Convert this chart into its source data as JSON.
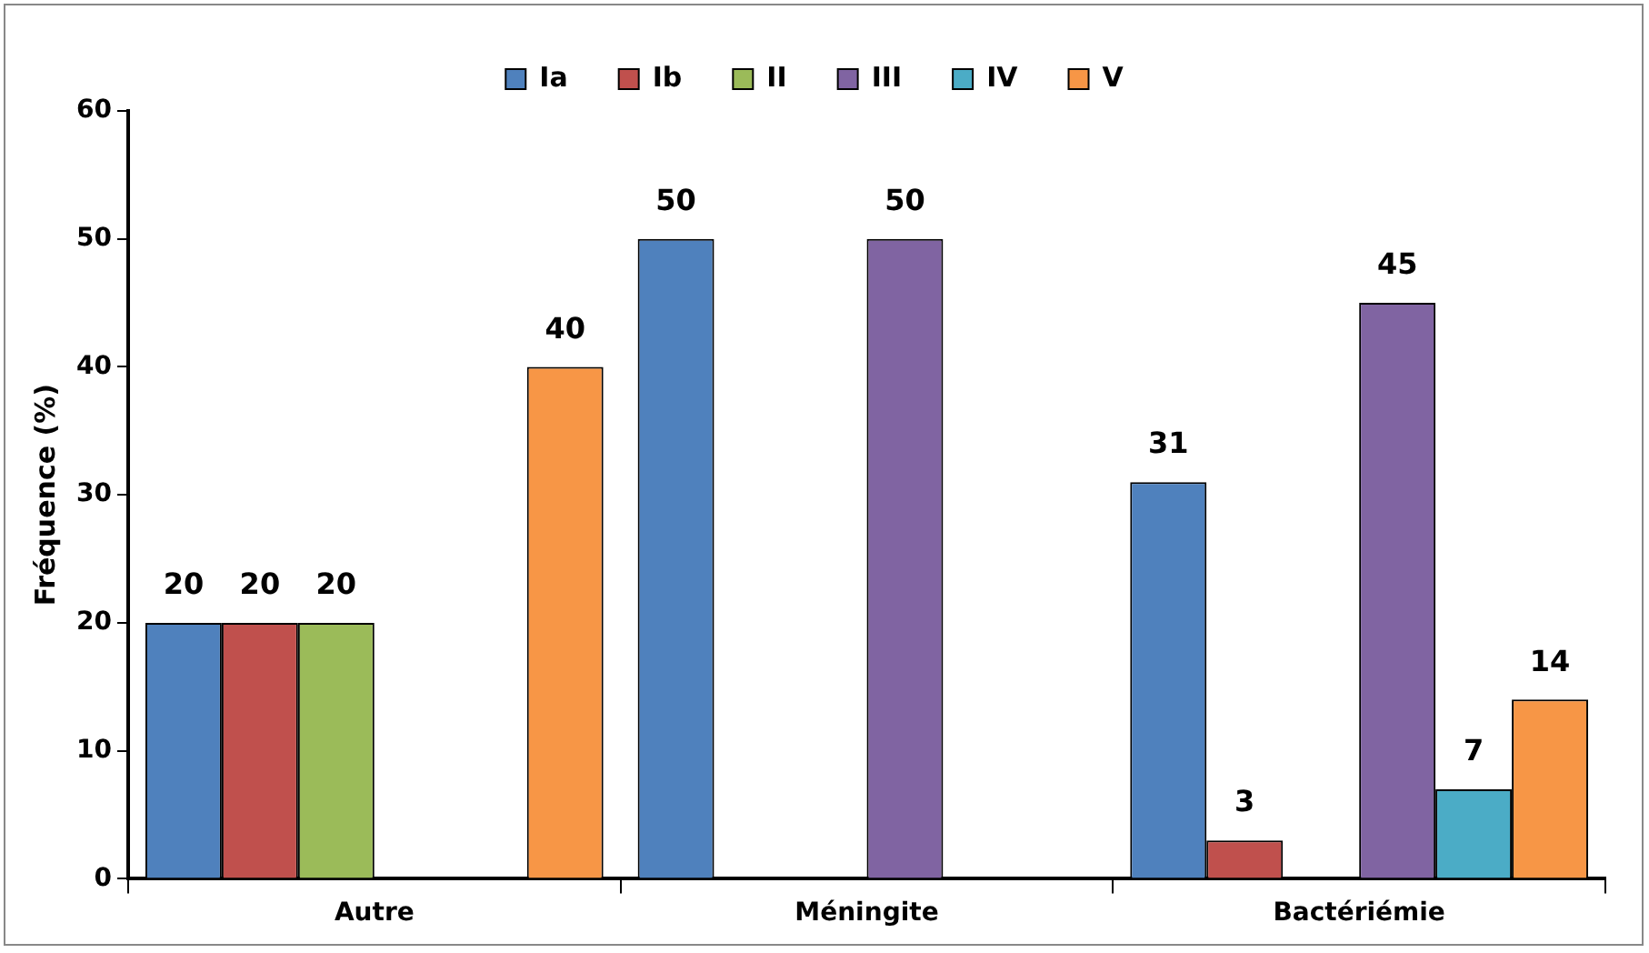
{
  "chart_data": {
    "type": "bar",
    "ylabel": "Fréquence (%)",
    "categories": [
      "Autre",
      "Méningite",
      "Bactériémie"
    ],
    "series": [
      {
        "name": "Ia",
        "color": "#4f81bd",
        "values": [
          20,
          50,
          31
        ]
      },
      {
        "name": "Ib",
        "color": "#c0504d",
        "values": [
          20,
          null,
          3
        ]
      },
      {
        "name": "II",
        "color": "#9bbb59",
        "values": [
          20,
          null,
          null
        ]
      },
      {
        "name": "III",
        "color": "#8064a2",
        "values": [
          null,
          50,
          45
        ]
      },
      {
        "name": "IV",
        "color": "#4bacc6",
        "values": [
          null,
          null,
          7
        ]
      },
      {
        "name": "V",
        "color": "#f79646",
        "values": [
          40,
          null,
          14
        ]
      }
    ],
    "ylim": [
      0,
      60
    ],
    "yticks": [
      0,
      10,
      20,
      30,
      40,
      50,
      60
    ],
    "grid": false,
    "legend": "top",
    "data_labels": true
  }
}
